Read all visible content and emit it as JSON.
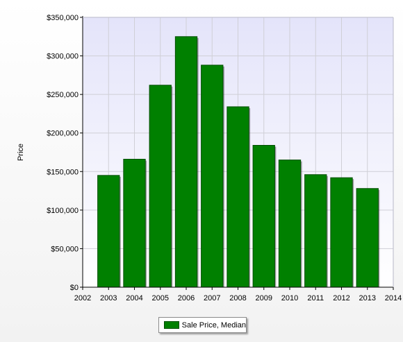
{
  "chart_data": {
    "type": "bar",
    "title": "",
    "xlabel": "",
    "ylabel": "Price",
    "x_ticks": [
      "2002",
      "2003",
      "2004",
      "2005",
      "2006",
      "2007",
      "2008",
      "2009",
      "2010",
      "2011",
      "2012",
      "2013",
      "2014"
    ],
    "xlim": [
      2002,
      2014
    ],
    "ylim": [
      0,
      350000
    ],
    "y_ticks": [
      "$0",
      "$50,000",
      "$100,000",
      "$150,000",
      "$200,000",
      "$250,000",
      "$300,000",
      "$350,000"
    ],
    "y_tick_values": [
      0,
      50000,
      100000,
      150000,
      200000,
      250000,
      300000,
      350000
    ],
    "categories": [
      "2003",
      "2004",
      "2005",
      "2006",
      "2007",
      "2008",
      "2009",
      "2010",
      "2011",
      "2012",
      "2013"
    ],
    "series": [
      {
        "name": "Sale Price, Median",
        "color": "#008000",
        "values": [
          145000,
          166000,
          262000,
          325000,
          288000,
          234000,
          184000,
          165000,
          146000,
          142000,
          128000
        ]
      }
    ],
    "grid": true,
    "legend_position": "bottom-center",
    "plot_background": "#ececfa"
  }
}
